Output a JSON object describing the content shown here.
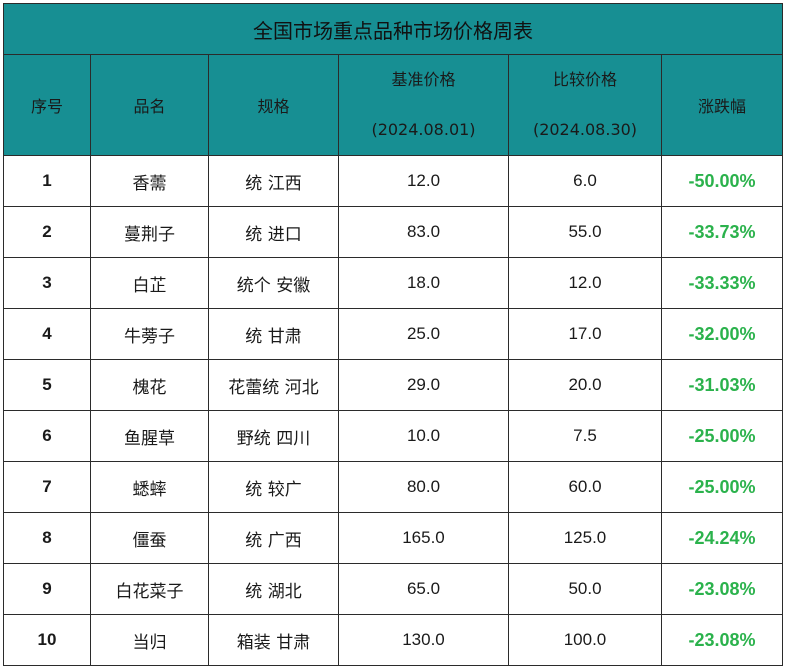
{
  "title": "全国市场重点品种市场价格周表",
  "headers": {
    "index": "序号",
    "name": "品名",
    "spec": "规格",
    "base_price": "基准价格",
    "base_date": "(2024.08.01)",
    "compare_price": "比较价格",
    "compare_date": "(2024.08.30)",
    "change": "涨跌幅"
  },
  "rows": [
    {
      "index": "1",
      "name": "香薷",
      "spec": "统 江西",
      "base": "12.0",
      "compare": "6.0",
      "change": "-50.00%"
    },
    {
      "index": "2",
      "name": "蔓荆子",
      "spec": "统 进口",
      "base": "83.0",
      "compare": "55.0",
      "change": "-33.73%"
    },
    {
      "index": "3",
      "name": "白芷",
      "spec": "统个 安徽",
      "base": "18.0",
      "compare": "12.0",
      "change": "-33.33%"
    },
    {
      "index": "4",
      "name": "牛蒡子",
      "spec": "统 甘肃",
      "base": "25.0",
      "compare": "17.0",
      "change": "-32.00%"
    },
    {
      "index": "5",
      "name": "槐花",
      "spec": "花蕾统 河北",
      "base": "29.0",
      "compare": "20.0",
      "change": "-31.03%"
    },
    {
      "index": "6",
      "name": "鱼腥草",
      "spec": "野统 四川",
      "base": "10.0",
      "compare": "7.5",
      "change": "-25.00%"
    },
    {
      "index": "7",
      "name": "蟋蟀",
      "spec": "统 较广",
      "base": "80.0",
      "compare": "60.0",
      "change": "-25.00%"
    },
    {
      "index": "8",
      "name": "僵蚕",
      "spec": "统 广西",
      "base": "165.0",
      "compare": "125.0",
      "change": "-24.24%"
    },
    {
      "index": "9",
      "name": "白花菜子",
      "spec": "统 湖北",
      "base": "65.0",
      "compare": "50.0",
      "change": "-23.08%"
    },
    {
      "index": "10",
      "name": "当归",
      "spec": "箱装 甘肃",
      "base": "130.0",
      "compare": "100.0",
      "change": "-23.08%"
    }
  ],
  "colors": {
    "header_bg": "#178f93",
    "negative_change": "#2bb24c",
    "border": "#2b2b2b"
  }
}
